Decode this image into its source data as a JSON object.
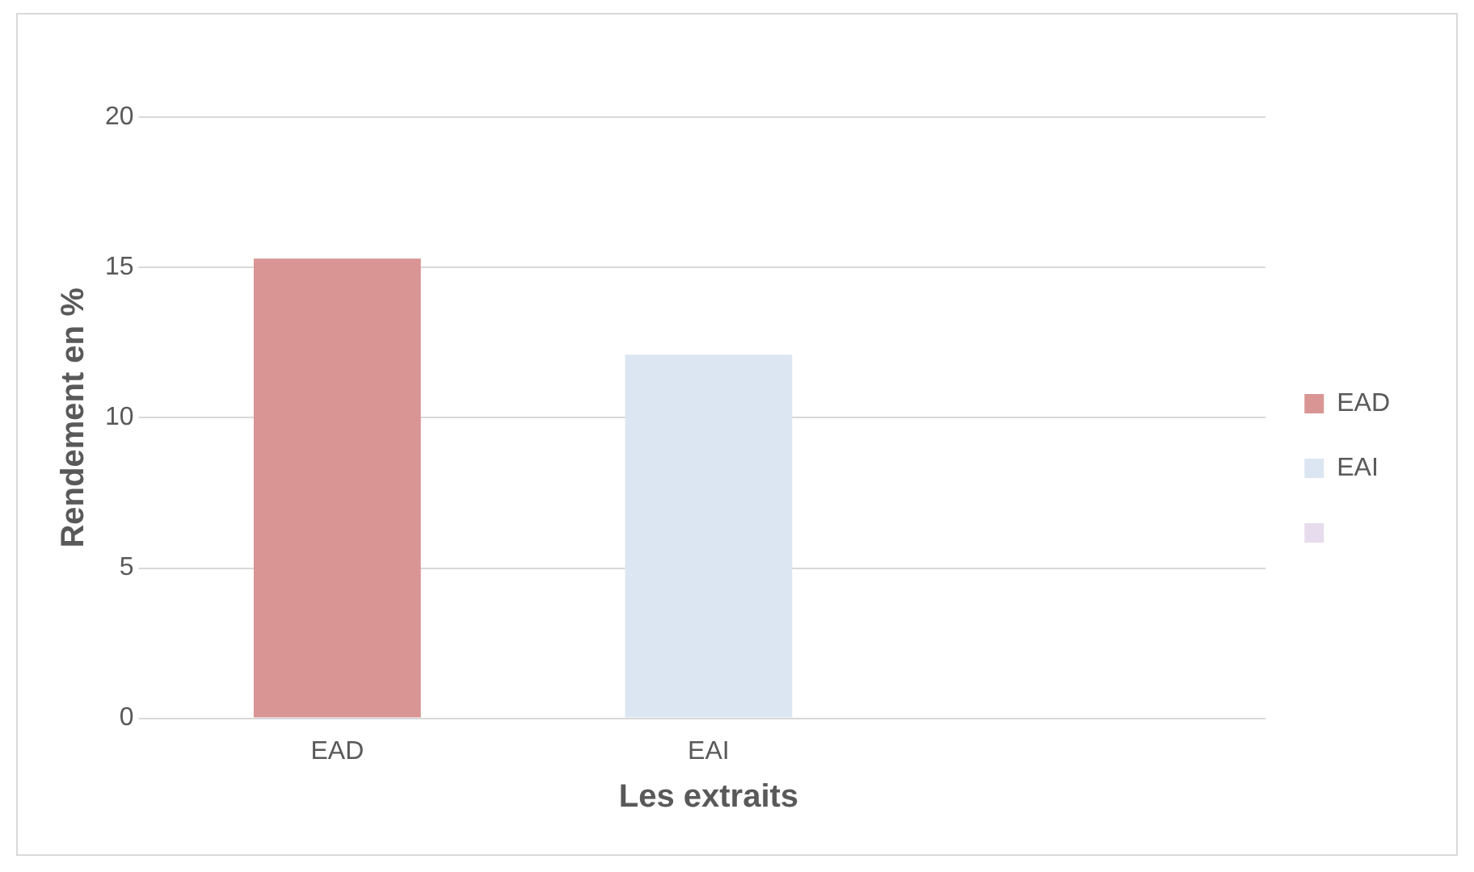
{
  "chart_data": {
    "type": "bar",
    "xlabel": "Les extraits",
    "ylabel": "Rendement en %",
    "categories": [
      "EAD",
      "EAI",
      null
    ],
    "series": [
      {
        "name": "EAD",
        "color": "#d99594",
        "values": [
          15.3,
          null,
          null
        ]
      },
      {
        "name": "EAI",
        "color": "#dce6f2",
        "values": [
          null,
          12.1,
          null
        ]
      },
      {
        "color": "#e6dced",
        "values": [
          null,
          null,
          null
        ]
      }
    ],
    "ylim": [
      0,
      20
    ],
    "yticks": [
      0,
      5,
      10,
      15,
      20
    ],
    "grid": "y",
    "legend": "right"
  }
}
